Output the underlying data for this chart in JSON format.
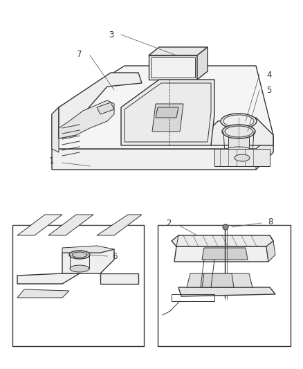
{
  "bg_color": "#ffffff",
  "line_color": "#333333",
  "light_gray": "#cccccc",
  "mid_gray": "#aaaaaa",
  "fig_width": 4.38,
  "fig_height": 5.33,
  "dpi": 100
}
